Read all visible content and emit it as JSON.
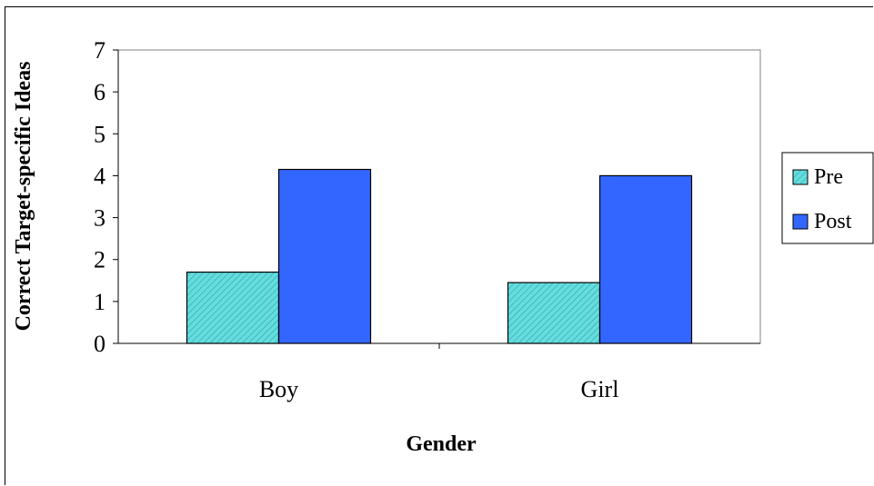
{
  "chart_data": {
    "type": "bar",
    "xlabel": "Gender",
    "ylabel": "Correct Target-specific Ideas",
    "categories": [
      "Boy",
      "Girl"
    ],
    "series": [
      {
        "name": "Pre",
        "values": [
          1.7,
          1.45
        ],
        "color": "#66dddd",
        "pattern": "diagonal-hatch"
      },
      {
        "name": "Post",
        "values": [
          4.15,
          4.0
        ],
        "color": "#3366ff"
      }
    ],
    "ylim": [
      0,
      7
    ],
    "yticks": [
      "0",
      "1",
      "2",
      "3",
      "4",
      "5",
      "6",
      "7"
    ],
    "legend_position": "right",
    "grid": false
  }
}
